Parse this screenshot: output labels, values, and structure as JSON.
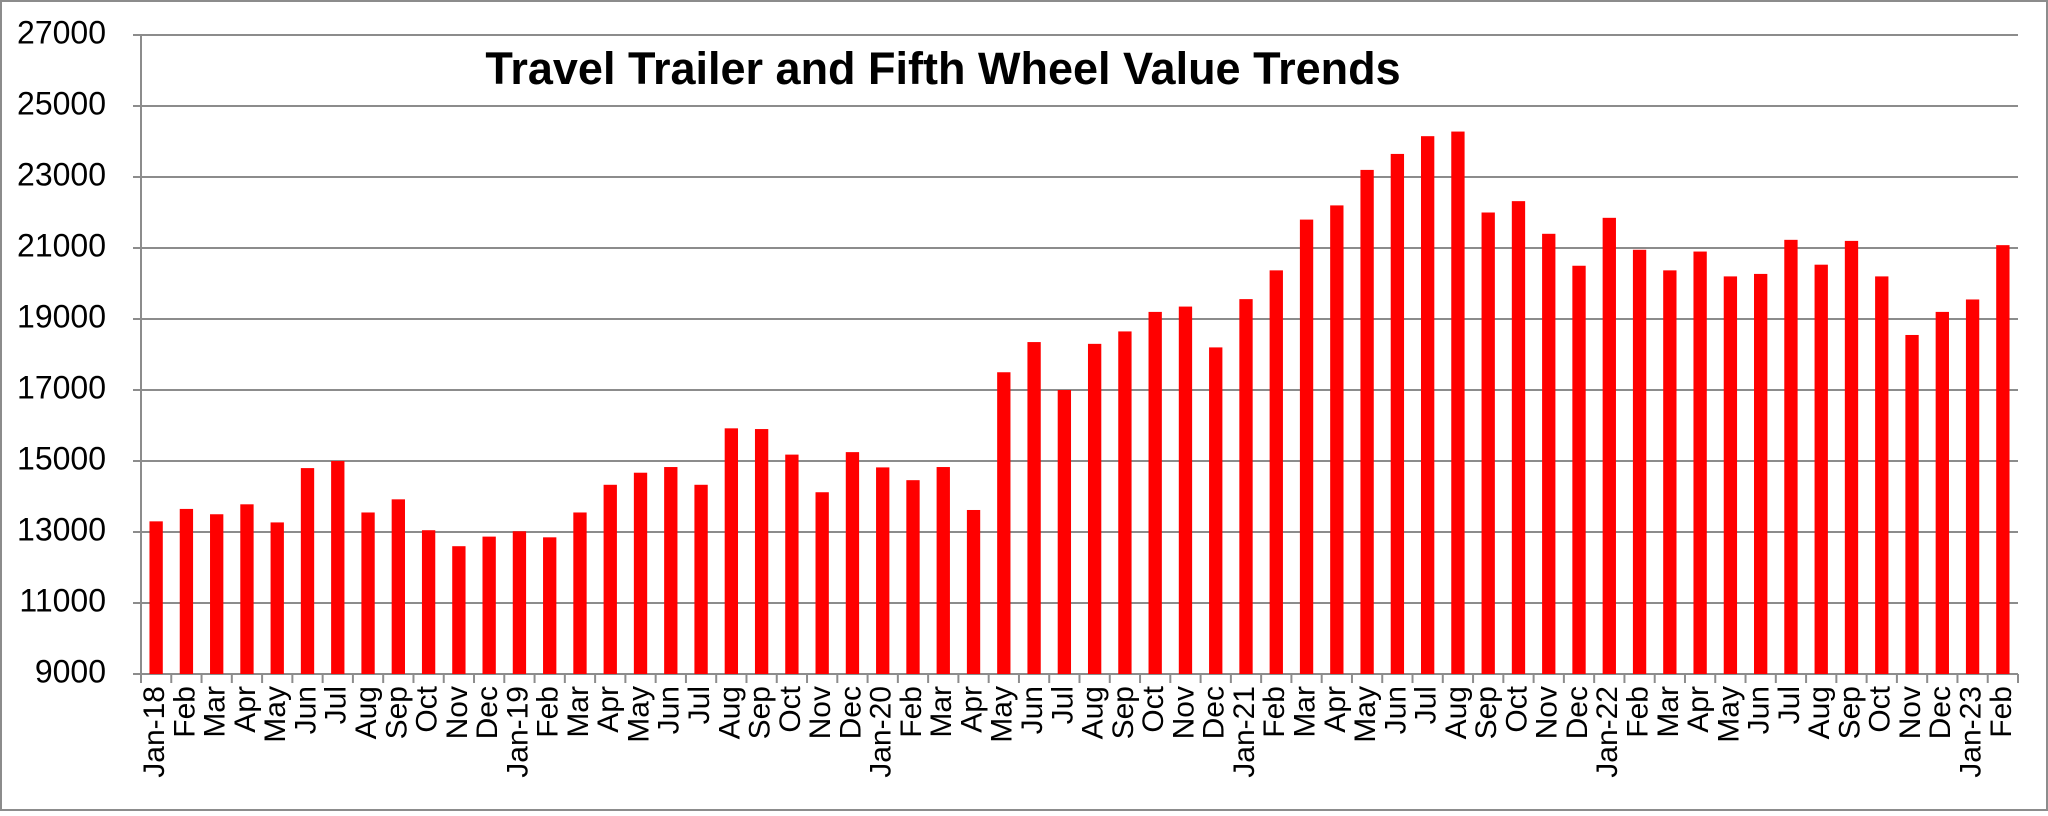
{
  "chart_data": {
    "type": "bar",
    "title": "Travel Trailer and Fifth Wheel Value Trends",
    "categories": [
      "Jan-18",
      "Feb",
      "Mar",
      "Apr",
      "May",
      "Jun",
      "Jul",
      "Aug",
      "Sep",
      "Oct",
      "Nov",
      "Dec",
      "Jan-19",
      "Feb",
      "Mar",
      "Apr",
      "May",
      "Jun",
      "Jul",
      "Aug",
      "Sep",
      "Oct",
      "Nov",
      "Dec",
      "Jan-20",
      "Feb",
      "Mar",
      "Apr",
      "May",
      "Jun",
      "Jul",
      "Aug",
      "Sep",
      "Oct",
      "Nov",
      "Dec",
      "Jan-21",
      "Feb",
      "Mar",
      "Apr",
      "May",
      "Jun",
      "Jul",
      "Aug",
      "Sep",
      "Oct",
      "Nov",
      "Dec",
      "Jan-22",
      "Feb",
      "Mar",
      "Apr",
      "May",
      "Jun",
      "Jul",
      "Aug",
      "Sep",
      "Oct",
      "Nov",
      "Dec",
      "Jan-23",
      "Feb"
    ],
    "values": [
      13300,
      13650,
      13500,
      13780,
      13270,
      14800,
      15000,
      13550,
      13920,
      13050,
      12600,
      12870,
      13020,
      12850,
      13550,
      14330,
      14670,
      14830,
      14330,
      15920,
      15900,
      15180,
      14120,
      15250,
      14820,
      14460,
      14830,
      13620,
      17500,
      18350,
      17000,
      18300,
      18650,
      19200,
      19350,
      18200,
      19560,
      20370,
      21800,
      22200,
      23200,
      23650,
      24150,
      24280,
      22000,
      22320,
      21400,
      20500,
      21850,
      20950,
      20370,
      20900,
      20200,
      20270,
      21230,
      20530,
      21200,
      20200,
      18550,
      19200,
      19550,
      21080
    ],
    "color": "#ff0000",
    "ylim": [
      9000,
      27000
    ],
    "yticks": [
      9000,
      11000,
      13000,
      15000,
      17000,
      19000,
      21000,
      23000,
      25000,
      27000
    ],
    "grid": true
  }
}
